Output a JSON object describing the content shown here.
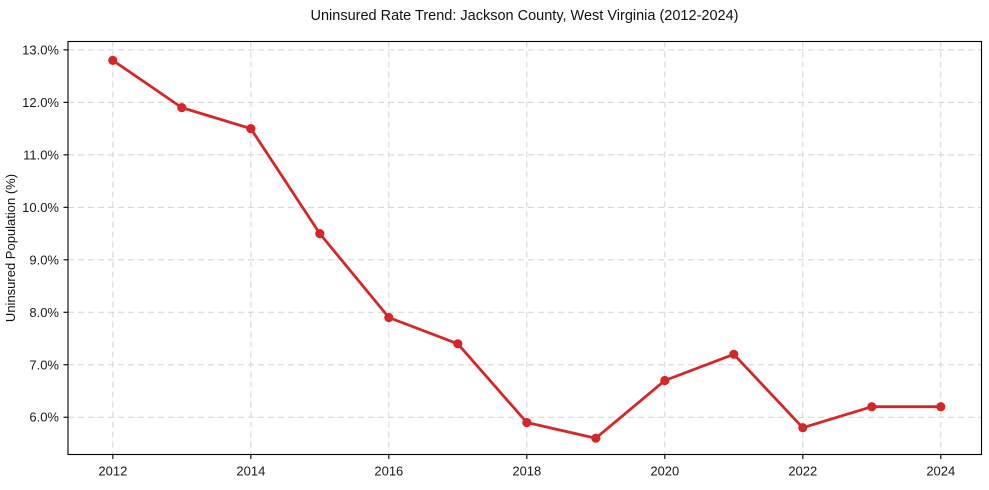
{
  "chart_data": {
    "type": "line",
    "title": "Uninsured Rate Trend: Jackson County, West Virginia (2012-2024)",
    "xlabel": "",
    "ylabel": "Uninsured Population (%)",
    "x": [
      2012,
      2013,
      2014,
      2015,
      2016,
      2017,
      2018,
      2019,
      2020,
      2021,
      2022,
      2023,
      2024
    ],
    "series": [
      {
        "name": "Uninsured rate",
        "values": [
          12.8,
          11.9,
          11.5,
          9.5,
          7.9,
          7.4,
          5.9,
          5.6,
          6.7,
          7.2,
          5.8,
          6.2,
          6.2
        ],
        "color": "#d62728",
        "marker": "circle"
      }
    ],
    "xlim": [
      2011.35,
      2024.59
    ],
    "ylim": [
      5.29,
      13.16
    ],
    "xticks": {
      "values": [
        2012,
        2014,
        2016,
        2018,
        2020,
        2022,
        2024
      ],
      "labels": [
        "2012",
        "2014",
        "2016",
        "2018",
        "2020",
        "2022",
        "2024"
      ]
    },
    "yticks": {
      "values": [
        6,
        7,
        8,
        9,
        10,
        11,
        12,
        13
      ],
      "labels": [
        "6.0%",
        "7.0%",
        "8.0%",
        "9.0%",
        "10.0%",
        "11.0%",
        "12.0%",
        "13.0%"
      ]
    },
    "grid": {
      "visible": true,
      "style": "dashed",
      "color": "#cccccc"
    },
    "legend": "none",
    "colors": {
      "line": "#d62728",
      "frame": "#000000",
      "background": "#ffffff",
      "grid": "#cccccc"
    }
  }
}
